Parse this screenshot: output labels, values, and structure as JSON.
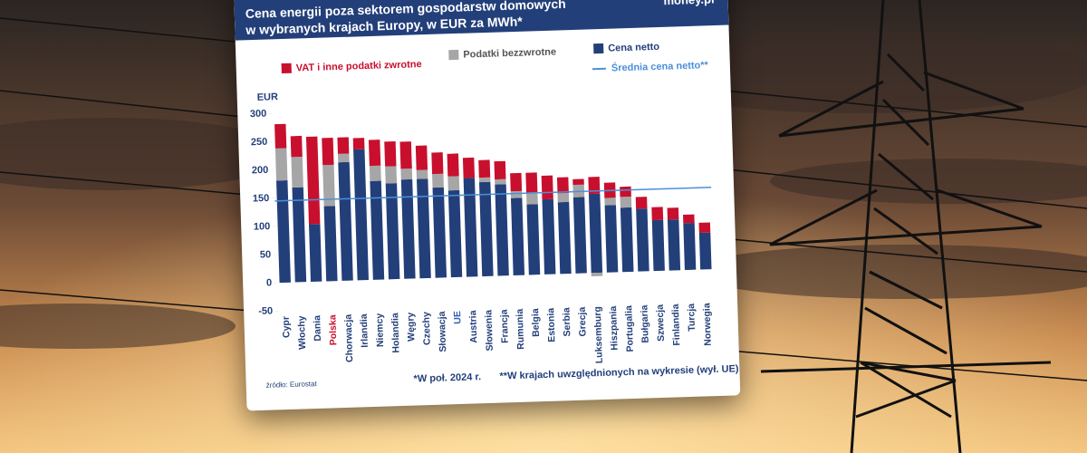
{
  "chart_data": {
    "type": "stacked_bar",
    "title": "Cena energii poza sektorem gospodarstw domowych",
    "subtitle": "w wybranych krajach Europy, w EUR za MWh*",
    "brand": "money.pl",
    "y_label": "EUR",
    "categories": [
      "Cypr",
      "Włochy",
      "Dania",
      "Polska",
      "Chorwacja",
      "Irlandia",
      "Niemcy",
      "Holandia",
      "Węgry",
      "Czechy",
      "Słowacja",
      "UE",
      "Austria",
      "Słowenia",
      "Francja",
      "Rumunia",
      "Belgia",
      "Estonia",
      "Serbia",
      "Grecja",
      "Luksemburg",
      "Hiszpania",
      "Portugalia",
      "Bułgaria",
      "Szwecja",
      "Finlandia",
      "Turcja",
      "Norwegia"
    ],
    "highlights": [
      {
        "index": 3,
        "color": "#c8102e"
      },
      {
        "index": 11,
        "color": "#2f5fb3"
      }
    ],
    "series": [
      {
        "name": "Cena netto",
        "color": "#233f7a",
        "values": [
          181,
          168,
          102,
          133,
          210,
          232,
          175,
          170,
          176,
          176,
          160,
          154,
          175,
          167,
          162,
          137,
          125,
          133,
          127,
          135,
          140,
          119,
          114,
          111,
          90,
          90,
          83,
          65
        ]
      },
      {
        "name": "Podatki bezzwrotne",
        "color": "#a6a6a6",
        "values": [
          57,
          54,
          0,
          73,
          15,
          0,
          27,
          30,
          19,
          16,
          24,
          25,
          0,
          8,
          9,
          12,
          21,
          0,
          16,
          22,
          -6,
          13,
          19,
          0,
          0,
          0,
          0,
          0
        ]
      },
      {
        "name": "VAT i inne podatki zwrotne",
        "color": "#c8102e",
        "values": [
          43,
          37,
          155,
          48,
          29,
          20,
          46,
          44,
          48,
          43,
          38,
          40,
          36,
          31,
          32,
          32,
          35,
          42,
          28,
          10,
          30,
          27,
          18,
          21,
          23,
          21,
          15,
          18
        ]
      }
    ],
    "mean_line": {
      "name": "Średnia cena netto**",
      "value": 145,
      "color": "#4a90d9"
    },
    "ylim": [
      -50,
      300
    ],
    "yticks": [
      -50,
      0,
      50,
      100,
      150,
      200,
      250,
      300
    ],
    "source": "źródło: Eurostat",
    "footnote1": "*W poł. 2024 r.",
    "footnote2": "**W krajach uwzględnionych na wykresie (wył. UE)"
  }
}
